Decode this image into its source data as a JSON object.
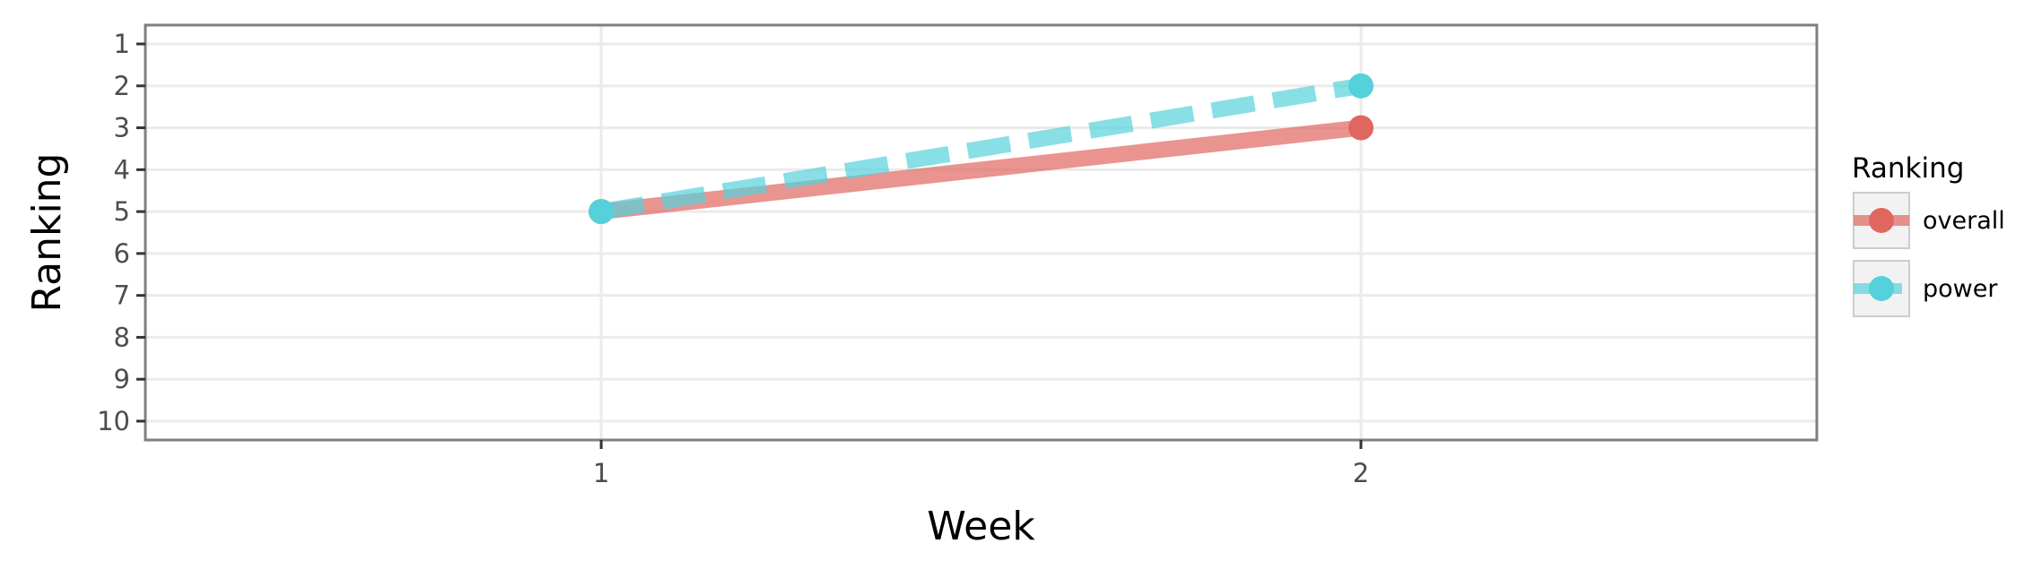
{
  "chart_data": {
    "type": "line",
    "xlabel": "Week",
    "ylabel": "Ranking",
    "x": [
      1,
      2
    ],
    "x_ticks": [
      "1",
      "2"
    ],
    "xlim": [
      0.4,
      2.6
    ],
    "y_ticks": [
      "1",
      "2",
      "3",
      "4",
      "5",
      "6",
      "7",
      "8",
      "9",
      "10"
    ],
    "ylim": [
      0.55,
      10.45
    ],
    "y_reversed": true,
    "grid": true,
    "legend": {
      "title": "Ranking",
      "placement": "right"
    },
    "series": [
      {
        "name": "overall",
        "values": [
          5,
          3
        ],
        "color": "#E06760",
        "line_style": "solid"
      },
      {
        "name": "power",
        "values": [
          5,
          2
        ],
        "color": "#55D1DB",
        "line_style": "dashed"
      }
    ]
  }
}
